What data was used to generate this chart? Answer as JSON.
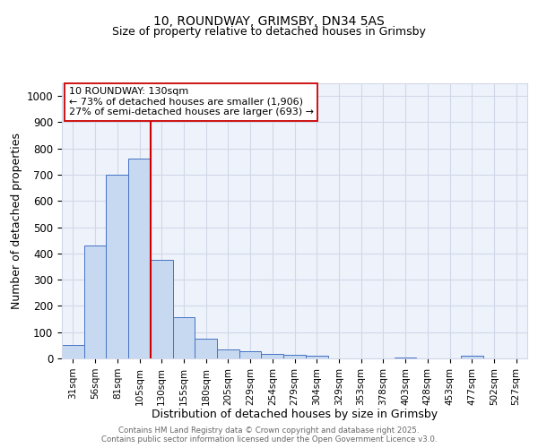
{
  "title1": "10, ROUNDWAY, GRIMSBY, DN34 5AS",
  "title2": "Size of property relative to detached houses in Grimsby",
  "xlabel": "Distribution of detached houses by size in Grimsby",
  "ylabel": "Number of detached properties",
  "categories": [
    "31sqm",
    "56sqm",
    "81sqm",
    "105sqm",
    "130sqm",
    "155sqm",
    "180sqm",
    "205sqm",
    "229sqm",
    "254sqm",
    "279sqm",
    "304sqm",
    "329sqm",
    "353sqm",
    "378sqm",
    "403sqm",
    "428sqm",
    "453sqm",
    "477sqm",
    "502sqm",
    "527sqm"
  ],
  "values": [
    50,
    430,
    700,
    760,
    375,
    158,
    75,
    35,
    28,
    17,
    12,
    10,
    0,
    0,
    0,
    5,
    0,
    0,
    10,
    0,
    0
  ],
  "bar_color": "#c6d9f1",
  "bar_edge_color": "#4472c4",
  "vline_x": 3.5,
  "vline_color": "#cc0000",
  "annotation_text": "10 ROUNDWAY: 130sqm\n← 73% of detached houses are smaller (1,906)\n27% of semi-detached houses are larger (693) →",
  "annotation_box_color": "#ffffff",
  "annotation_box_edge": "#cc0000",
  "ylim": [
    0,
    1050
  ],
  "yticks": [
    0,
    100,
    200,
    300,
    400,
    500,
    600,
    700,
    800,
    900,
    1000
  ],
  "grid_color": "#d0d8e8",
  "bg_color": "#eef2fb",
  "footer": "Contains HM Land Registry data © Crown copyright and database right 2025.\nContains public sector information licensed under the Open Government Licence v3.0.",
  "title_fontsize": 10,
  "subtitle_fontsize": 9
}
